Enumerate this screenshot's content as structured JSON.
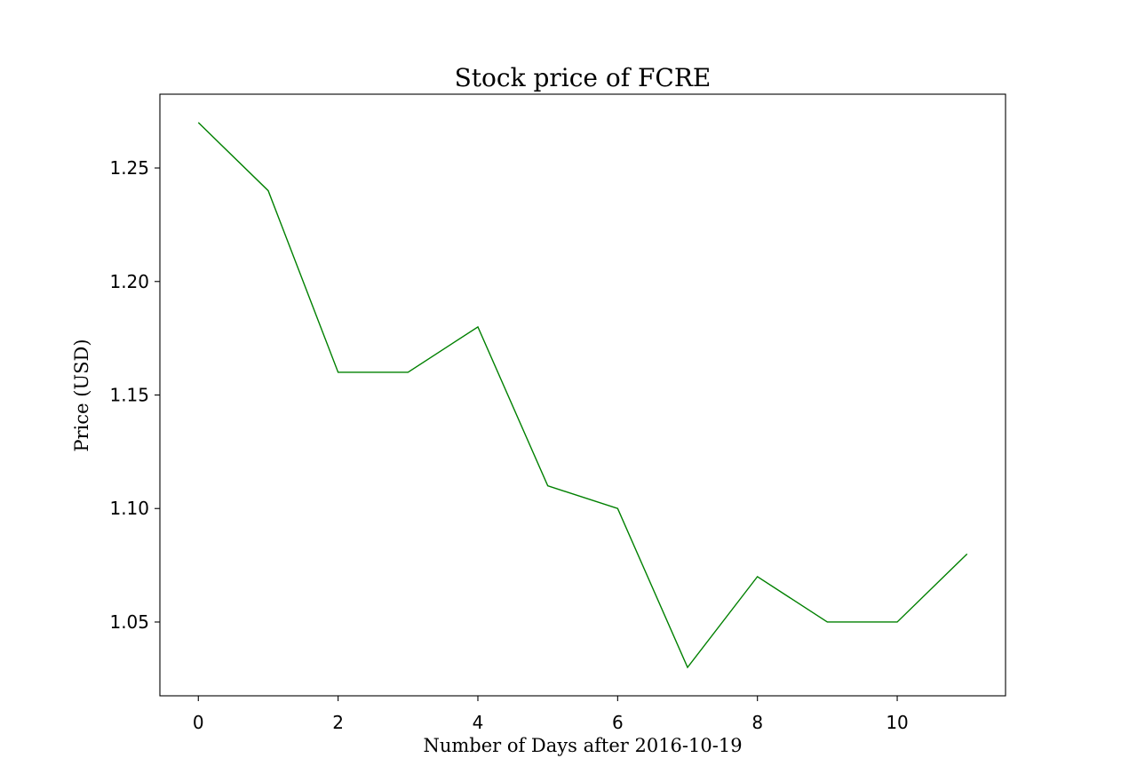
{
  "chart_data": {
    "type": "line",
    "title": "Stock price of FCRE",
    "xlabel": "Number of Days after 2016-10-19",
    "ylabel": "Price (USD)",
    "x": [
      0,
      1,
      2,
      3,
      4,
      5,
      6,
      7,
      8,
      9,
      10,
      11
    ],
    "series": [
      {
        "values": [
          1.27,
          1.24,
          1.16,
          1.16,
          1.18,
          1.11,
          1.1,
          1.03,
          1.07,
          1.05,
          1.05,
          1.08
        ],
        "color": "#008000"
      }
    ],
    "xlim": [
      -0.55,
      11.55
    ],
    "ylim": [
      1.0175,
      1.2825
    ],
    "xticks": [
      0,
      2,
      4,
      6,
      8,
      10
    ],
    "xtick_labels": [
      "0",
      "2",
      "4",
      "6",
      "8",
      "10"
    ],
    "yticks": [
      1.05,
      1.1,
      1.15,
      1.2,
      1.25
    ],
    "ytick_labels": [
      "1.05",
      "1.10",
      "1.15",
      "1.20",
      "1.25"
    ],
    "grid": false,
    "legend": "none"
  }
}
